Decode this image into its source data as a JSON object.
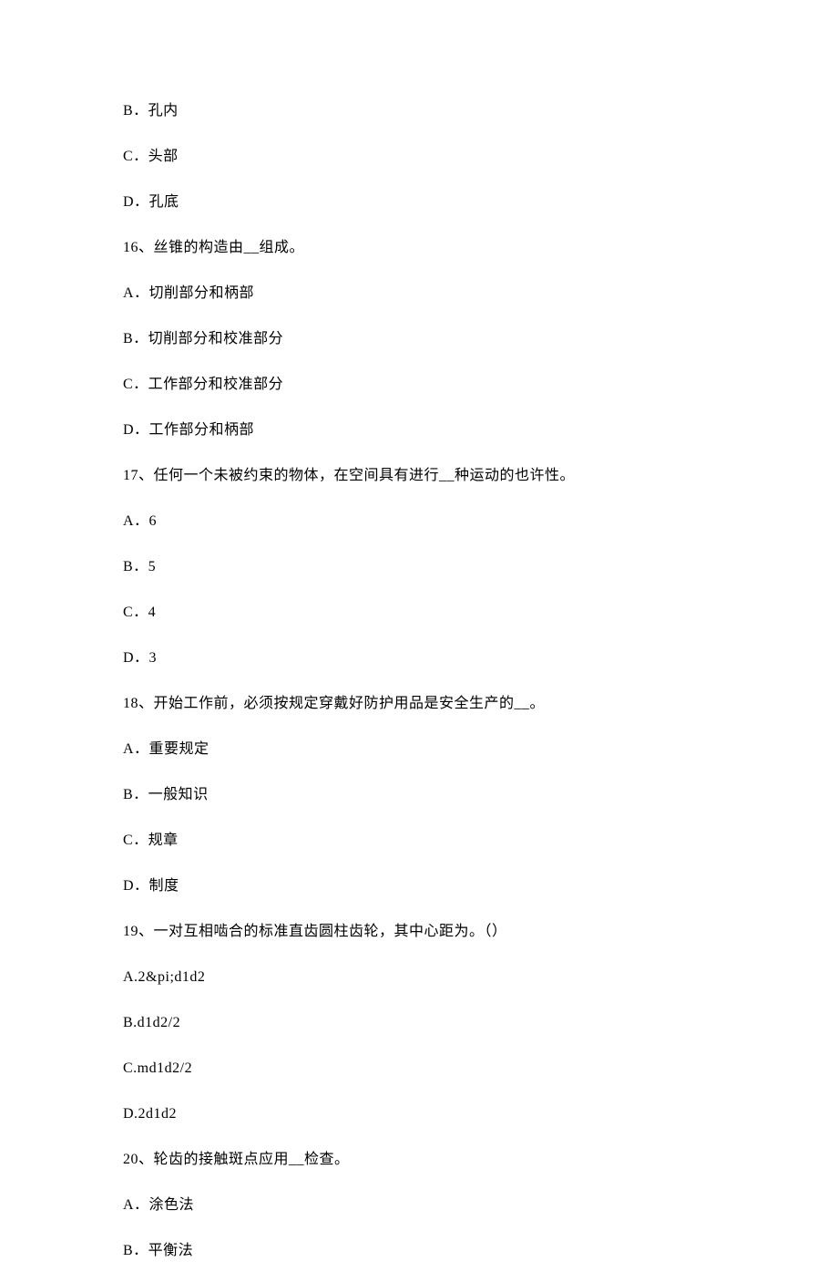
{
  "lines": [
    {
      "text": "B．孔内"
    },
    {
      "text": "C．头部"
    },
    {
      "text": "D．孔底"
    },
    {
      "text": "16、丝锥的构造由__组成。"
    },
    {
      "text": "A．切削部分和柄部"
    },
    {
      "text": "B．切削部分和校准部分"
    },
    {
      "text": "C．工作部分和校准部分"
    },
    {
      "text": "D．工作部分和柄部"
    },
    {
      "text": "17、任何一个未被约束的物体，在空间具有进行__种运动的也许性。"
    },
    {
      "text": "A．6"
    },
    {
      "text": "B．5"
    },
    {
      "text": "C．4"
    },
    {
      "text": "D．3"
    },
    {
      "text": "18、开始工作前，必须按规定穿戴好防护用品是安全生产的__。"
    },
    {
      "text": "A．重要规定"
    },
    {
      "text": "B．一般知识"
    },
    {
      "text": "C．规章"
    },
    {
      "text": "D．制度"
    },
    {
      "text": "19、一对互相啮合的标准直齿圆柱齿轮，其中心距为。（）"
    },
    {
      "text": "A.2&pi;d1d2"
    },
    {
      "text": "B.d1d2/2"
    },
    {
      "text": "C.md1d2/2"
    },
    {
      "text": "D.2d1d2"
    },
    {
      "text": "20、轮齿的接触斑点应用__检查。"
    },
    {
      "text": "A．涂色法"
    },
    {
      "text": "B．平衡法"
    }
  ]
}
